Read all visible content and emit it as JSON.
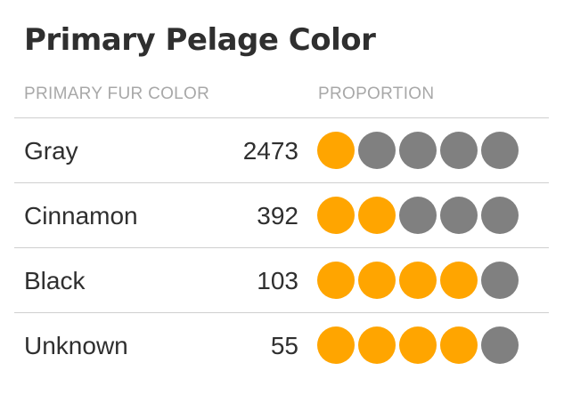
{
  "title": "Primary Pelage Color",
  "chart_data": {
    "type": "table",
    "title": "Primary Pelage Color",
    "columns": [
      "PRIMARY FUR COLOR",
      "PROPORTION"
    ],
    "rows": [
      {
        "label": "Gray",
        "count": 2473,
        "filled": 1,
        "total": 5
      },
      {
        "label": "Cinnamon",
        "count": 392,
        "filled": 2,
        "total": 5
      },
      {
        "label": "Black",
        "count": 103,
        "filled": 4,
        "total": 5
      },
      {
        "label": "Unknown",
        "count": 55,
        "filled": 4,
        "total": 5
      }
    ]
  },
  "colors": {
    "filled": "#FFA500",
    "empty": "#808080"
  }
}
